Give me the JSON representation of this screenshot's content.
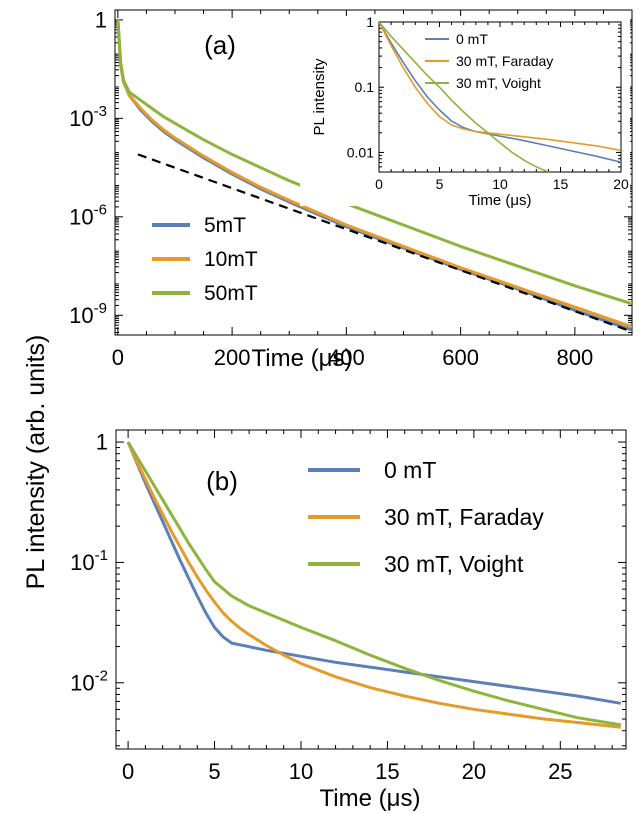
{
  "figure": {
    "ylabel_shared": "PL intensity (arb. units)"
  },
  "colors": {
    "blue": "#5b7fb8",
    "orange": "#e69a28",
    "green": "#8db53e",
    "dash": "#000000"
  },
  "chart_data": [
    {
      "id": "panel-a",
      "panel_label": "(a)",
      "type": "line",
      "xlabel": "Time (μs)",
      "xlim": [
        -5,
        900
      ],
      "ylim_log10": [
        -9.6,
        0.3
      ],
      "yscale": "log",
      "xticks": [
        0,
        200,
        400,
        600,
        800
      ],
      "yticks": [
        {
          "exp": 0,
          "label": "1"
        },
        {
          "exp": -3,
          "label": "10",
          "sup": "-3"
        },
        {
          "exp": -6,
          "label": "10",
          "sup": "-6"
        },
        {
          "exp": -9,
          "label": "10",
          "sup": "-9"
        }
      ],
      "legend_position": "middle-left",
      "series": [
        {
          "name": "5mT",
          "color": "#5b7fb8",
          "x": [
            0,
            5,
            10,
            20,
            40,
            60,
            80,
            100,
            150,
            200,
            250,
            300,
            400,
            500,
            600,
            700,
            800,
            900
          ],
          "y_log10": [
            0,
            -1.4,
            -1.9,
            -2.3,
            -2.75,
            -3.1,
            -3.4,
            -3.65,
            -4.2,
            -4.7,
            -5.15,
            -5.55,
            -6.3,
            -6.95,
            -7.6,
            -8.2,
            -8.85,
            -9.45
          ]
        },
        {
          "name": "10mT",
          "color": "#e69a28",
          "x": [
            0,
            5,
            10,
            20,
            40,
            60,
            80,
            100,
            150,
            200,
            250,
            300,
            400,
            500,
            600,
            700,
            800,
            900
          ],
          "y_log10": [
            0,
            -1.4,
            -1.9,
            -2.3,
            -2.7,
            -3.05,
            -3.35,
            -3.6,
            -4.15,
            -4.65,
            -5.1,
            -5.5,
            -6.25,
            -6.9,
            -7.55,
            -8.15,
            -8.75,
            -9.35
          ]
        },
        {
          "name": "50mT",
          "color": "#8db53e",
          "x": [
            0,
            5,
            10,
            20,
            40,
            60,
            80,
            100,
            150,
            200,
            250,
            300,
            400,
            500,
            600,
            700,
            800,
            900
          ],
          "y_log10": [
            0,
            -1.3,
            -1.85,
            -2.2,
            -2.45,
            -2.7,
            -2.95,
            -3.15,
            -3.65,
            -4.1,
            -4.5,
            -4.9,
            -5.6,
            -6.25,
            -6.9,
            -7.5,
            -8.1,
            -8.65
          ]
        },
        {
          "name": "",
          "color": "#000000",
          "dashed": true,
          "x": [
            35,
            900
          ],
          "y_log10": [
            -4.1,
            -9.5
          ]
        }
      ],
      "inset": {
        "type": "line",
        "ylabel": "PL intensity",
        "xlabel": "Time (μs)",
        "xlim": [
          0,
          20
        ],
        "ylim_log10": [
          -2.3,
          0
        ],
        "yscale": "log",
        "xticks": [
          0,
          5,
          10,
          15,
          20
        ],
        "yticks": [
          {
            "exp": 0,
            "label": "1"
          },
          {
            "exp": -1,
            "label": "0.1"
          },
          {
            "exp": -2,
            "label": "0.01"
          }
        ],
        "legend_position": "top-right",
        "series": [
          {
            "name": "0 mT",
            "color": "#5b7fb8",
            "x": [
              0,
              1,
              2,
              3,
              4,
              5,
              6,
              7,
              8,
              10,
              12,
              14,
              16,
              18,
              20
            ],
            "y_log10": [
              0,
              -0.32,
              -0.62,
              -0.9,
              -1.15,
              -1.35,
              -1.52,
              -1.62,
              -1.68,
              -1.75,
              -1.82,
              -1.9,
              -1.98,
              -2.06,
              -2.15
            ]
          },
          {
            "name": "30 mT, Faraday",
            "color": "#e69a28",
            "x": [
              0,
              1,
              2,
              3,
              4,
              5,
              6,
              7,
              8,
              10,
              12,
              14,
              16,
              18,
              20
            ],
            "y_log10": [
              0,
              -0.36,
              -0.7,
              -1.0,
              -1.25,
              -1.45,
              -1.58,
              -1.64,
              -1.68,
              -1.72,
              -1.76,
              -1.8,
              -1.85,
              -1.9,
              -1.97
            ]
          },
          {
            "name": "30 mT, Voight",
            "color": "#8db53e",
            "x": [
              0,
              1,
              2,
              3,
              4,
              5,
              6,
              7,
              8,
              9,
              10,
              11,
              12,
              13,
              14
            ],
            "y_log10": [
              0,
              -0.22,
              -0.42,
              -0.62,
              -0.82,
              -1.0,
              -1.2,
              -1.38,
              -1.55,
              -1.7,
              -1.85,
              -2.0,
              -2.12,
              -2.22,
              -2.3
            ]
          }
        ]
      }
    },
    {
      "id": "panel-b",
      "panel_label": "(b)",
      "type": "line",
      "xlabel": "Time (μs)",
      "xlim": [
        -0.7,
        28.8
      ],
      "ylim_log10": [
        -2.55,
        0.1
      ],
      "yscale": "log",
      "xticks": [
        0,
        5,
        10,
        15,
        20,
        25
      ],
      "yticks": [
        {
          "exp": 0,
          "label": "1"
        },
        {
          "exp": -1,
          "label": "10",
          "sup": "-1"
        },
        {
          "exp": -2,
          "label": "10",
          "sup": "-2"
        }
      ],
      "legend_position": "top-right",
      "series": [
        {
          "name": "0 mT",
          "color": "#5b7fb8",
          "x": [
            0,
            0.5,
            1,
            1.5,
            2,
            2.5,
            3,
            3.5,
            4,
            4.5,
            5,
            5.5,
            6,
            7,
            8,
            10,
            12,
            14,
            16,
            18,
            20,
            22,
            24,
            26,
            28.5
          ],
          "y_log10": [
            0,
            -0.17,
            -0.34,
            -0.5,
            -0.66,
            -0.82,
            -0.98,
            -1.13,
            -1.28,
            -1.42,
            -1.54,
            -1.62,
            -1.67,
            -1.7,
            -1.73,
            -1.78,
            -1.83,
            -1.87,
            -1.91,
            -1.95,
            -1.99,
            -2.03,
            -2.07,
            -2.11,
            -2.17
          ]
        },
        {
          "name": "30 mT, Faraday",
          "color": "#e69a28",
          "x": [
            0,
            0.5,
            1,
            1.5,
            2,
            2.5,
            3,
            3.5,
            4,
            4.5,
            5,
            5.5,
            6,
            6.5,
            7,
            8,
            9,
            10,
            12,
            14,
            16,
            18,
            20,
            22,
            24,
            26,
            28.5
          ],
          "y_log10": [
            0,
            -0.16,
            -0.31,
            -0.46,
            -0.6,
            -0.74,
            -0.87,
            -1.0,
            -1.12,
            -1.23,
            -1.33,
            -1.42,
            -1.49,
            -1.55,
            -1.6,
            -1.69,
            -1.77,
            -1.84,
            -1.95,
            -2.04,
            -2.11,
            -2.17,
            -2.22,
            -2.26,
            -2.3,
            -2.33,
            -2.37
          ]
        },
        {
          "name": "30 mT, Voight",
          "color": "#8db53e",
          "x": [
            0,
            0.5,
            1,
            1.5,
            2,
            2.5,
            3,
            3.5,
            4,
            4.5,
            5,
            6,
            7,
            8,
            10,
            12,
            14,
            16,
            18,
            20,
            22,
            24,
            26,
            28.5
          ],
          "y_log10": [
            0,
            -0.12,
            -0.24,
            -0.36,
            -0.48,
            -0.6,
            -0.72,
            -0.84,
            -0.95,
            -1.06,
            -1.16,
            -1.28,
            -1.36,
            -1.42,
            -1.54,
            -1.65,
            -1.77,
            -1.88,
            -1.98,
            -2.07,
            -2.15,
            -2.22,
            -2.29,
            -2.35
          ]
        }
      ]
    }
  ]
}
